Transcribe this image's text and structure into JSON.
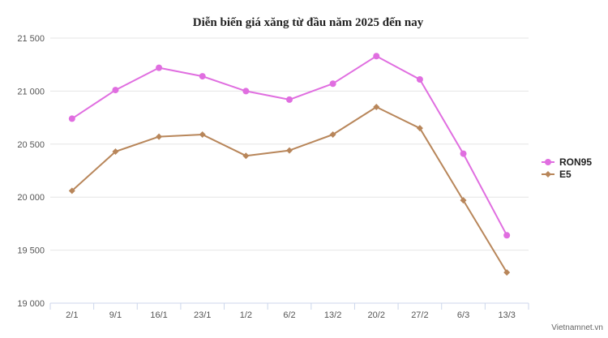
{
  "chart_data": {
    "type": "line",
    "title": "Diễn biến giá xăng từ đầu năm 2025 đến nay",
    "categories": [
      "2/1",
      "9/1",
      "16/1",
      "23/1",
      "1/2",
      "6/2",
      "13/2",
      "20/2",
      "27/2",
      "6/3",
      "13/3"
    ],
    "series": [
      {
        "name": "RON95",
        "color": "#e06ee0",
        "marker": "circle",
        "values": [
          20740,
          21010,
          21220,
          21140,
          21000,
          20920,
          21070,
          21330,
          21110,
          20410,
          19640
        ]
      },
      {
        "name": "E5",
        "color": "#b8865a",
        "marker": "diamond",
        "values": [
          20060,
          20430,
          20570,
          20590,
          20390,
          20440,
          20590,
          20850,
          20650,
          19970,
          19290
        ]
      }
    ],
    "ylim": [
      19000,
      21500
    ],
    "yticks": [
      19000,
      19500,
      20000,
      20500,
      21000,
      21500
    ],
    "ytick_labels": [
      "19 000",
      "19 500",
      "20 000",
      "20 500",
      "21 000",
      "21 500"
    ],
    "grid": true,
    "legend_position": "right"
  },
  "source_label": "Vietnamnet.vn"
}
